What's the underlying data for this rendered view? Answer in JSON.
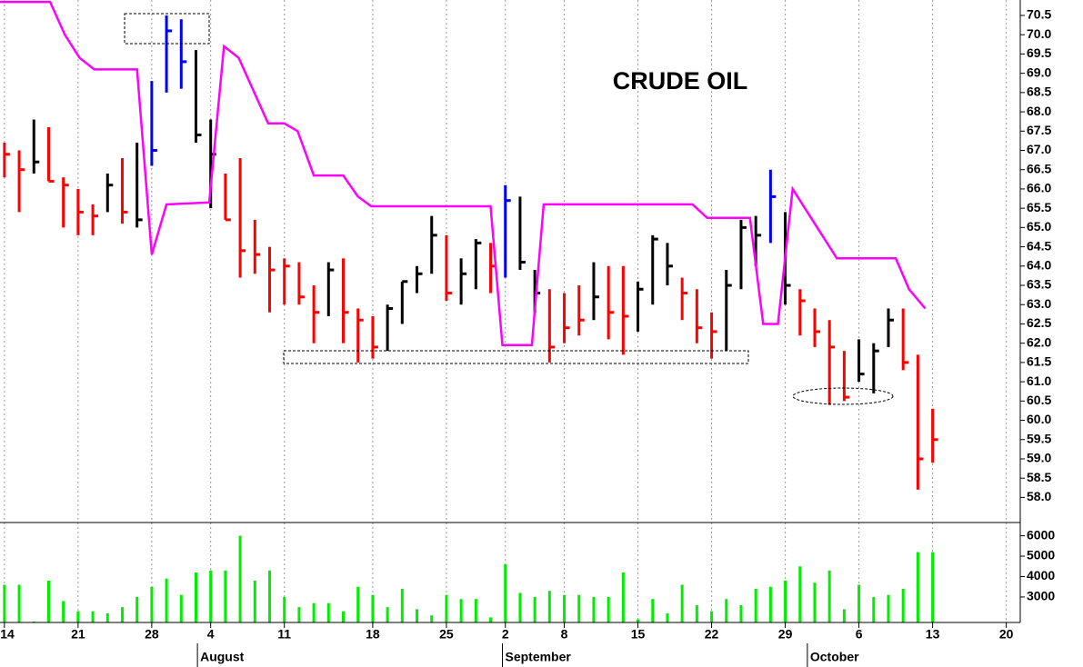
{
  "chart_data": [
    {
      "type": "ohlc",
      "title": "CRUDE OIL",
      "x": [
        0,
        1,
        2,
        3,
        4,
        5,
        6,
        7,
        8,
        9,
        10,
        11,
        12,
        13,
        14,
        15,
        16,
        17,
        18,
        19,
        20,
        21,
        22,
        23,
        24,
        25,
        26,
        27,
        28,
        29,
        30,
        31,
        32,
        33,
        34,
        35,
        36,
        37,
        38,
        39,
        40,
        41,
        42,
        43,
        44,
        45,
        46,
        47,
        48,
        49,
        50,
        51,
        52,
        53,
        54,
        55,
        56,
        57,
        58,
        59,
        60,
        61,
        62,
        63
      ],
      "high": [
        67.2,
        67.0,
        67.8,
        67.6,
        66.3,
        66.0,
        65.6,
        66.4,
        66.8,
        67.2,
        68.8,
        70.5,
        70.4,
        69.6,
        67.8,
        66.4,
        66.8,
        65.2,
        64.5,
        64.2,
        64.1,
        63.5,
        64.1,
        64.2,
        62.9,
        62.7,
        63.0,
        63.6,
        64.0,
        65.3,
        64.8,
        64.2,
        64.7,
        64.6,
        66.1,
        65.8,
        63.9,
        63.4,
        63.3,
        63.5,
        64.1,
        64.0,
        64.0,
        63.6,
        64.8,
        64.6,
        63.7,
        63.4,
        62.8,
        63.9,
        65.2,
        65.3,
        66.5,
        65.4,
        63.4,
        62.9,
        62.6,
        61.8,
        62.1,
        62.0,
        62.9,
        62.9,
        61.7,
        60.3
      ],
      "low": [
        66.3,
        65.4,
        66.4,
        66.2,
        65.0,
        64.8,
        64.8,
        65.4,
        65.1,
        65.0,
        66.6,
        68.5,
        68.6,
        67.2,
        65.5,
        65.2,
        63.7,
        63.8,
        62.8,
        63.0,
        63.0,
        62.0,
        62.7,
        62.0,
        61.5,
        61.6,
        61.8,
        62.5,
        63.3,
        63.8,
        63.1,
        63.0,
        63.4,
        63.3,
        63.7,
        63.9,
        62.8,
        61.5,
        62.0,
        62.2,
        62.6,
        62.1,
        61.7,
        62.3,
        63.0,
        63.5,
        62.6,
        62.0,
        61.6,
        61.8,
        63.4,
        64.0,
        64.6,
        63.0,
        62.2,
        61.9,
        60.4,
        60.5,
        61.0,
        60.7,
        61.9,
        61.3,
        58.2,
        58.9
      ],
      "close": [
        66.9,
        66.5,
        66.7,
        66.2,
        66.1,
        65.4,
        65.3,
        66.1,
        65.4,
        65.2,
        67.0,
        70.1,
        69.3,
        67.4,
        66.9,
        65.2,
        64.4,
        64.3,
        63.9,
        64.0,
        63.2,
        62.8,
        63.9,
        62.8,
        62.6,
        61.9,
        62.9,
        63.6,
        63.8,
        64.8,
        63.3,
        63.8,
        64.6,
        64.0,
        65.7,
        64.1,
        63.3,
        61.9,
        62.4,
        62.6,
        63.2,
        62.8,
        62.7,
        63.4,
        64.7,
        64.0,
        63.3,
        62.4,
        62.3,
        63.5,
        65.0,
        64.8,
        65.8,
        63.5,
        63.1,
        62.3,
        61.9,
        60.6,
        61.2,
        61.8,
        62.6,
        61.5,
        59.0,
        59.5
      ],
      "colors": [
        "#ff0000",
        "#ff0000",
        "#000000",
        "#ff0000",
        "#ff0000",
        "#ff0000",
        "#ff0000",
        "#000000",
        "#ff0000",
        "#000000",
        "#0000ff",
        "#0000ff",
        "#0000ff",
        "#000000",
        "#000000",
        "#ff0000",
        "#ff0000",
        "#ff0000",
        "#ff0000",
        "#ff0000",
        "#ff0000",
        "#ff0000",
        "#000000",
        "#ff0000",
        "#ff0000",
        "#ff0000",
        "#000000",
        "#000000",
        "#000000",
        "#000000",
        "#ff0000",
        "#000000",
        "#000000",
        "#ff0000",
        "#0000ff",
        "#000000",
        "#000000",
        "#ff0000",
        "#ff0000",
        "#ff0000",
        "#000000",
        "#ff0000",
        "#ff0000",
        "#000000",
        "#000000",
        "#000000",
        "#ff0000",
        "#ff0000",
        "#ff0000",
        "#000000",
        "#000000",
        "#000000",
        "#0000ff",
        "#000000",
        "#ff0000",
        "#ff0000",
        "#ff0000",
        "#ff0000",
        "#000000",
        "#000000",
        "#000000",
        "#ff0000",
        "#ff0000",
        "#ff0000"
      ],
      "lines": [
        {
          "color": "#ff00ff",
          "x": [
            -0.3,
            3.1,
            4.1,
            5.1,
            6.1,
            9.0,
            10.0,
            11.0,
            13.9,
            14.9,
            15.9,
            17.9,
            19.0,
            19.9,
            21.0,
            23.0,
            24.0,
            24.9,
            33.0,
            33.8,
            35.8,
            36.6,
            46.7,
            47.7,
            50.6,
            51.5,
            52.5,
            53.5,
            54.5,
            56.5,
            60.5,
            61.4,
            62.5
          ],
          "values": [
            70.85,
            70.85,
            70.0,
            69.4,
            69.1,
            69.1,
            64.3,
            65.6,
            65.65,
            69.7,
            69.4,
            67.7,
            67.7,
            67.5,
            66.35,
            66.35,
            65.8,
            65.55,
            65.55,
            61.95,
            61.95,
            65.6,
            65.6,
            65.25,
            65.25,
            62.5,
            62.5,
            66.0,
            65.4,
            64.2,
            64.2,
            63.4,
            62.9
          ]
        }
      ],
      "ylim": [
        57.35,
        70.9
      ],
      "yticks": [
        {
          "value": 58,
          "label": "58.0"
        },
        58.5,
        {
          "value": 59,
          "label": "59.0"
        },
        59.5,
        {
          "value": 60,
          "label": "60.0"
        },
        60.5,
        {
          "value": 61,
          "label": "61.0"
        },
        61.5,
        {
          "value": 62,
          "label": "62.0"
        },
        62.5,
        {
          "value": 63,
          "label": "63.0"
        },
        63.5,
        {
          "value": 64,
          "label": "64.0"
        },
        64.5,
        {
          "value": 65,
          "label": "65.0"
        },
        65.5,
        {
          "value": 66,
          "label": "66.0"
        },
        66.5,
        {
          "value": 67,
          "label": "67.0"
        },
        67.5,
        {
          "value": 68,
          "label": "68.0"
        },
        68.5,
        {
          "value": 69,
          "label": "69.0"
        },
        69.5,
        {
          "value": 70,
          "label": "70.0"
        },
        70.5
      ]
    },
    {
      "type": "bar",
      "color": "#00ee00",
      "x": [
        0,
        1,
        2,
        3,
        4,
        5,
        6,
        7,
        8,
        9,
        10,
        11,
        12,
        13,
        14,
        15,
        16,
        17,
        18,
        19,
        20,
        21,
        22,
        23,
        24,
        25,
        26,
        27,
        28,
        29,
        30,
        31,
        32,
        33,
        34,
        35,
        36,
        37,
        38,
        39,
        40,
        41,
        42,
        43,
        44,
        45,
        46,
        47,
        48,
        49,
        50,
        51,
        52,
        53,
        54,
        55,
        56,
        57,
        58,
        59,
        60,
        61,
        62,
        63
      ],
      "values": [
        3600,
        3600,
        1800,
        3800,
        2800,
        2300,
        2300,
        2200,
        2500,
        3000,
        3500,
        3900,
        3100,
        4200,
        4300,
        4300,
        6000,
        3800,
        4300,
        3000,
        2500,
        2700,
        2700,
        2300,
        3500,
        3100,
        2500,
        3400,
        2400,
        2100,
        3100,
        2900,
        2900,
        2000,
        4600,
        3200,
        3000,
        3300,
        3100,
        3100,
        3000,
        3000,
        4200,
        1900,
        2900,
        2200,
        3600,
        2600,
        2300,
        2900,
        2600,
        3400,
        3500,
        3800,
        4500,
        3700,
        4300,
        2400,
        3600,
        3000,
        3100,
        3400,
        5200,
        5200
      ],
      "ylim": [
        1750,
        6650
      ],
      "yticks": [
        3000,
        4000,
        5000,
        6000
      ],
      "xlim": [
        -0.3,
        68.95
      ],
      "xticks": [
        {
          "value": 0,
          "label": "14"
        },
        {
          "value": 5,
          "label": "21"
        },
        {
          "value": 10,
          "label": "28"
        },
        {
          "value": 14,
          "label": "4"
        },
        {
          "value": 19,
          "label": "11"
        },
        {
          "value": 25,
          "label": "18"
        },
        {
          "value": 30,
          "label": "25"
        },
        {
          "value": 34,
          "label": "2"
        },
        {
          "value": 38,
          "label": "8"
        },
        {
          "value": 43,
          "label": "15"
        },
        {
          "value": 48,
          "label": "22"
        },
        {
          "value": 53,
          "label": "29"
        },
        {
          "value": 58,
          "label": "6"
        },
        {
          "value": 63,
          "label": "13"
        },
        {
          "value": 68,
          "label": "20"
        }
      ],
      "month_ticks": [
        {
          "value": 13.1,
          "label": "August"
        },
        {
          "value": 33.8,
          "label": "September"
        },
        {
          "value": 54.5,
          "label": "October"
        }
      ]
    }
  ]
}
